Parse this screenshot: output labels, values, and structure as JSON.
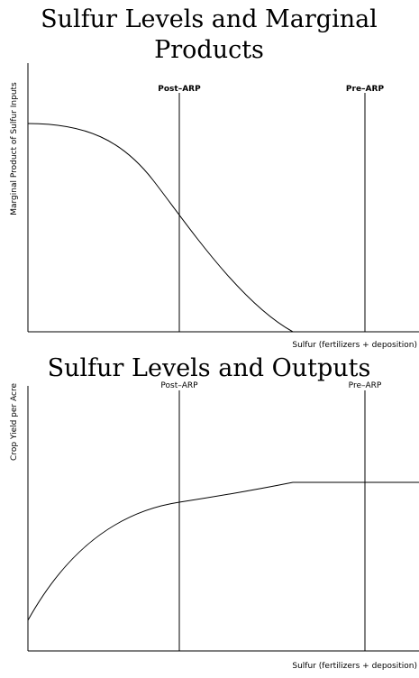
{
  "top_chart": {
    "title_lines": [
      "Sulfur Levels and Marginal",
      "Products"
    ],
    "y_label": "Marginal Product of Sulfur Inputs",
    "x_label": "Sulfur (fertilizers + deposition)",
    "markers": [
      "Post–ARP",
      "Pre–ARP"
    ]
  },
  "bottom_chart": {
    "title": "Sulfur Levels and Outputs",
    "y_label": "Crop Yield per Acre",
    "x_label": "Sulfur (fertilizers + deposition)",
    "markers": [
      "Post–ARP",
      "Pre–ARP"
    ]
  }
}
